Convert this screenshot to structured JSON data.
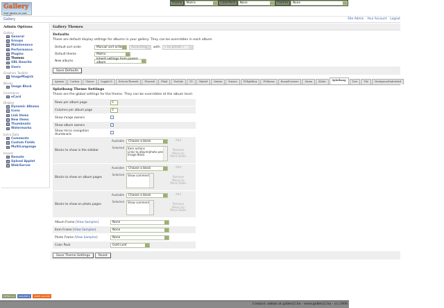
{
  "logo": {
    "text": "Gallery",
    "tagline": "Your photos on your website"
  },
  "topbar": {
    "theme_label": "Theme",
    "theme_value": "Matrix",
    "colorpack_label": "ColorPack",
    "colorpack_value": "None",
    "frames_label": "Frames",
    "frames_value": "None"
  },
  "breadcrumb": "Gallery",
  "site_links": [
    "Site Admin",
    "Your Account",
    "Logout"
  ],
  "sidebar": {
    "title": "Admin Options",
    "groups": [
      {
        "label": "Gallery",
        "items": [
          "General",
          "Groups",
          "Maintenance",
          "Performance",
          "Plugins",
          "Themes",
          "URL Rewrite",
          "Users"
        ]
      },
      {
        "label": "Graphics Toolkits",
        "items": [
          "ImageMagick"
        ]
      },
      {
        "label": "Blocks",
        "items": [
          "Image Block"
        ]
      },
      {
        "label": "Commerce",
        "items": [
          "eCard"
        ]
      },
      {
        "label": "Display",
        "items": [
          "Dynamic Albums",
          "Icons",
          "Link Items",
          "New Items",
          "Thumbnails",
          "Watermarks"
        ]
      },
      {
        "label": "Extra Data",
        "items": [
          "Comments",
          "Custom Fields",
          "MultiLanguage"
        ]
      },
      {
        "label": "Import",
        "items": [
          "Remote",
          "Upload Applet",
          "Web/Server"
        ]
      }
    ],
    "current": "Themes"
  },
  "main": {
    "title": "Gallery Themes",
    "defaults": {
      "heading": "Defaults",
      "description": "These are default display settings for albums in your gallery. They can be overridden in each album.",
      "sort_label": "Default sort order",
      "sort_value": "Manual sort order",
      "direction_value": "Ascending",
      "with_label": "with",
      "with_value": "« no preset »",
      "theme_label": "Default theme",
      "theme_value": "Matrix",
      "new_albums_label": "New albums",
      "new_albums_value": "Inherit settings from parent album",
      "save_button": "Save Defaults"
    },
    "tabs": [
      "Ajaxian",
      "Carbon",
      "Classic",
      "Cupple05",
      "EclecticThreads",
      "Flourish",
      "Fluid",
      "ForSale",
      "G1",
      "Hybrid",
      "Matrix",
      "Nature",
      "PGlightbox",
      "PGtheme",
      "RoundCorners",
      "Siriux",
      "Slider",
      "Splatbang",
      "Tere",
      "Tile",
      "WordpressEmbedded"
    ],
    "active_tab": "Splatbang",
    "settings": {
      "heading": "Splatbang Theme Settings",
      "description": "These are the global settings for the theme. They can be overridden at the album level.",
      "rows_label": "Rows per album page",
      "rows_value": "3",
      "cols_label": "Columns per album page",
      "cols_value": "3",
      "image_owners_label": "Show image owners",
      "image_owners_checked": false,
      "album_owners_label": "Show album owners",
      "album_owners_checked": true,
      "micro_nav_label": "Show micro navigation thumbnails",
      "micro_nav_checked": false,
      "block_sections": [
        {
          "label": "Blocks to show in the sidebar",
          "selected": [
            "Item actions",
            "Links to album/photo peers",
            "Image Block"
          ]
        },
        {
          "label": "Blocks to show on album pages",
          "selected": [
            "Show comments"
          ]
        },
        {
          "label": "Blocks to show on photo pages",
          "selected": [
            "Show comments"
          ]
        }
      ],
      "available_label": "Available",
      "selected_label": "Selected",
      "choose_value": "Choose a block",
      "add": "Add",
      "remove": "Remove",
      "move_up": "Move Up",
      "move_down": "Move Down",
      "album_frame_label": "Album Frame",
      "item_frame_label": "Item Frame",
      "photo_frame_label": "Photo Frame",
      "view_samples": "View Samples",
      "album_frame_value": "None",
      "item_frame_value": "None",
      "photo_frame_value": "None",
      "color_pack_label": "Color Pack",
      "color_pack_value": "Gold Leaf",
      "save_button": "Save Theme Settings",
      "reset_button": "Reset"
    }
  },
  "badges": [
    "XHTML 1.0",
    "GALLERY 2",
    "MADE GALLERY"
  ],
  "footer": "Contact: admin at gallery2.hu - www.gallery2.hu - (c) 2006"
}
